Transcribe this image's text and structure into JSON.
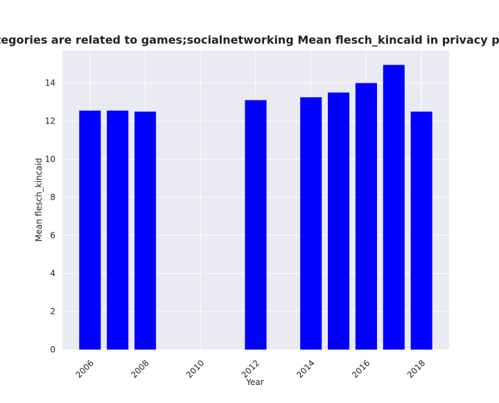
{
  "chart_data": {
    "type": "bar",
    "title": "Apps when categories are related to games;socialnetworking Mean flesch_kincaid in privacy policies by year",
    "xlabel": "Year",
    "ylabel": "Mean flesch_kincaid",
    "x": [
      2006,
      2007,
      2008,
      2012,
      2014,
      2015,
      2016,
      2017,
      2018
    ],
    "values": [
      12.55,
      12.55,
      12.5,
      13.1,
      13.25,
      13.5,
      14.0,
      14.95,
      12.5
    ],
    "xticks": [
      "2006",
      "2008",
      "2010",
      "2012",
      "2014",
      "2016",
      "2018"
    ],
    "yticks": [
      "0",
      "2",
      "4",
      "6",
      "8",
      "10",
      "12",
      "14"
    ],
    "xlim": [
      2005.0,
      2019.0
    ],
    "ylim": [
      0,
      15.7
    ],
    "bar_color": "#0000ff",
    "plot_background": "#eaeaf2",
    "grid": true
  }
}
